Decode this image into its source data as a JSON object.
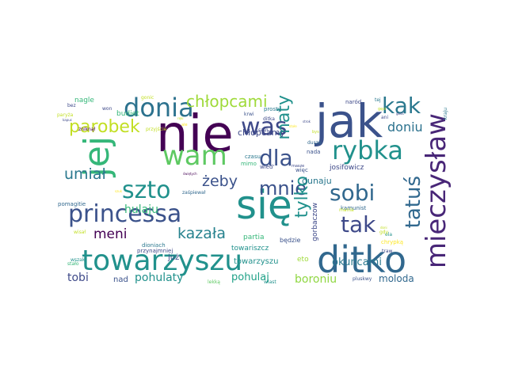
{
  "palette": {
    "dark_purple": "#440154",
    "indigo": "#3b528b",
    "slate": "#31688e",
    "teal": "#21918c",
    "green": "#35b779",
    "lime": "#90d743",
    "yellow": "#c2df23"
  },
  "words": [
    {
      "text": "nie",
      "color": "#440154"
    },
    {
      "text": "jak",
      "color": "#3b528b"
    },
    {
      "text": "się",
      "color": "#21918c"
    },
    {
      "text": "ditko",
      "color": "#31688e"
    },
    {
      "text": "towarzyszu",
      "color": "#21918c"
    },
    {
      "text": "mieczysław",
      "color": "#482677"
    },
    {
      "text": "jej",
      "color": "#35b779"
    },
    {
      "text": "wam",
      "color": "#5ec962"
    },
    {
      "text": "princessa",
      "color": "#3b528b"
    },
    {
      "text": "szto",
      "color": "#21918c"
    },
    {
      "text": "rybka",
      "color": "#21918c"
    },
    {
      "text": "donia",
      "color": "#2c728e"
    },
    {
      "text": "was",
      "color": "#3e4989"
    },
    {
      "text": "kak",
      "color": "#2a788e"
    },
    {
      "text": "sobi",
      "color": "#31688e"
    },
    {
      "text": "tak",
      "color": "#3e4989"
    },
    {
      "text": "dla",
      "color": "#3b528b"
    },
    {
      "text": "mnie",
      "color": "#3b528b"
    },
    {
      "text": "tatuś",
      "color": "#31688e"
    },
    {
      "text": "maty",
      "color": "#21918c"
    },
    {
      "text": "tylko",
      "color": "#21918c"
    },
    {
      "text": "parobek",
      "color": "#c2df23"
    },
    {
      "text": "chłopcami",
      "color": "#9fda3a"
    },
    {
      "text": "umiał",
      "color": "#2a788e"
    },
    {
      "text": "żeby",
      "color": "#3b528b"
    },
    {
      "text": "kazała",
      "color": "#26828e"
    },
    {
      "text": "doniu",
      "color": "#2c728e"
    },
    {
      "text": "hulaju",
      "color": "#35b779"
    },
    {
      "text": "meni",
      "color": "#440154"
    },
    {
      "text": "towarzyszu",
      "color": "#21918c"
    },
    {
      "text": "tobi",
      "color": "#3e4989"
    },
    {
      "text": "pohulaty",
      "color": "#21918c"
    },
    {
      "text": "pohulaj",
      "color": "#1fa187"
    },
    {
      "text": "boroniu",
      "color": "#90d743"
    },
    {
      "text": "okuncami",
      "color": "#2a788e"
    },
    {
      "text": "moloda",
      "color": "#31688e"
    },
    {
      "text": "dunaju",
      "color": "#2a788e"
    },
    {
      "text": "chłopcamy",
      "color": "#3e4989"
    },
    {
      "text": "już",
      "color": "#3e4989"
    },
    {
      "text": "nad",
      "color": "#3b528b"
    },
    {
      "text": "nagle",
      "color": "#35b779"
    },
    {
      "text": "budiet",
      "color": "#35b779"
    },
    {
      "text": "eto",
      "color": "#9fda3a"
    },
    {
      "text": "gorbaczow",
      "color": "#3e4989"
    },
    {
      "text": "partia",
      "color": "#35b779"
    },
    {
      "text": "josifowicz",
      "color": "#3e4989"
    },
    {
      "text": "towariszcz",
      "color": "#21918c"
    },
    {
      "text": "dioniach",
      "color": "#2a788e"
    },
    {
      "text": "przynajmniej",
      "color": "#3e4989"
    },
    {
      "text": "będzie",
      "color": "#3b528b"
    },
    {
      "text": "kamunist",
      "color": "#31688e"
    },
    {
      "text": "pomagitie",
      "color": "#31688e"
    },
    {
      "text": "więc",
      "color": "#3b528b"
    },
    {
      "text": "nada",
      "color": "#3b528b"
    },
    {
      "text": "czasu",
      "color": "#2a788e"
    },
    {
      "text": "mimo",
      "color": "#35b779"
    },
    {
      "text": "wied'",
      "color": "#3e4989"
    },
    {
      "text": "dusze",
      "color": "#31688e"
    },
    {
      "text": "prosty",
      "color": "#2a788e"
    },
    {
      "text": "krwi",
      "color": "#3b528b"
    },
    {
      "text": "naród",
      "color": "#3e4989"
    },
    {
      "text": "ditka",
      "color": "#3e4989"
    },
    {
      "text": "won",
      "color": "#3e4989"
    },
    {
      "text": "bez",
      "color": "#3e4989"
    },
    {
      "text": "gonic",
      "color": "#c2df23"
    },
    {
      "text": "paryża",
      "color": "#c2df23"
    },
    {
      "text": "przyjście",
      "color": "#c2df23"
    },
    {
      "text": "zniknął",
      "color": "#440154"
    },
    {
      "text": "zaśpiewał",
      "color": "#31688e"
    },
    {
      "text": "wszak",
      "color": "#21918c"
    },
    {
      "text": "stało",
      "color": "#35b779"
    },
    {
      "text": "wisał",
      "color": "#c2df23"
    },
    {
      "text": "lekką",
      "color": "#5ec962"
    },
    {
      "text": "wlast",
      "color": "#21918c"
    },
    {
      "text": "pluskwy",
      "color": "#3b528b"
    },
    {
      "text": "traw",
      "color": "#3e4989"
    },
    {
      "text": "chrypką",
      "color": "#fde725"
    },
    {
      "text": "ela",
      "color": "#21918c"
    },
    {
      "text": "gdy",
      "color": "#c2df23"
    },
    {
      "text": "mania",
      "color": "#c2df23"
    },
    {
      "text": "ani",
      "color": "#3e4989"
    },
    {
      "text": "kraju",
      "color": "#2a788e"
    },
    {
      "text": "tej",
      "color": "#2a788e"
    },
    {
      "text": "gęsi",
      "color": "#c2df23"
    },
    {
      "text": "ale",
      "color": "#fde725"
    },
    {
      "text": "sam",
      "color": "#3e4989"
    },
    {
      "text": "masze",
      "color": "#3e4989"
    },
    {
      "text": "bys",
      "color": "#c2df23"
    },
    {
      "text": "kapuc",
      "color": "#3e4989"
    },
    {
      "text": "stołe",
      "color": "#fde725"
    },
    {
      "text": "szuk",
      "color": "#fde725"
    },
    {
      "text": "ręki",
      "color": "#c2df23"
    },
    {
      "text": "doni",
      "color": "#c2df23"
    },
    {
      "text": "strok",
      "color": "#3e4989"
    },
    {
      "text": "świętych",
      "color": "#440154"
    },
    {
      "text": "gosić",
      "color": "#3e4989"
    }
  ]
}
